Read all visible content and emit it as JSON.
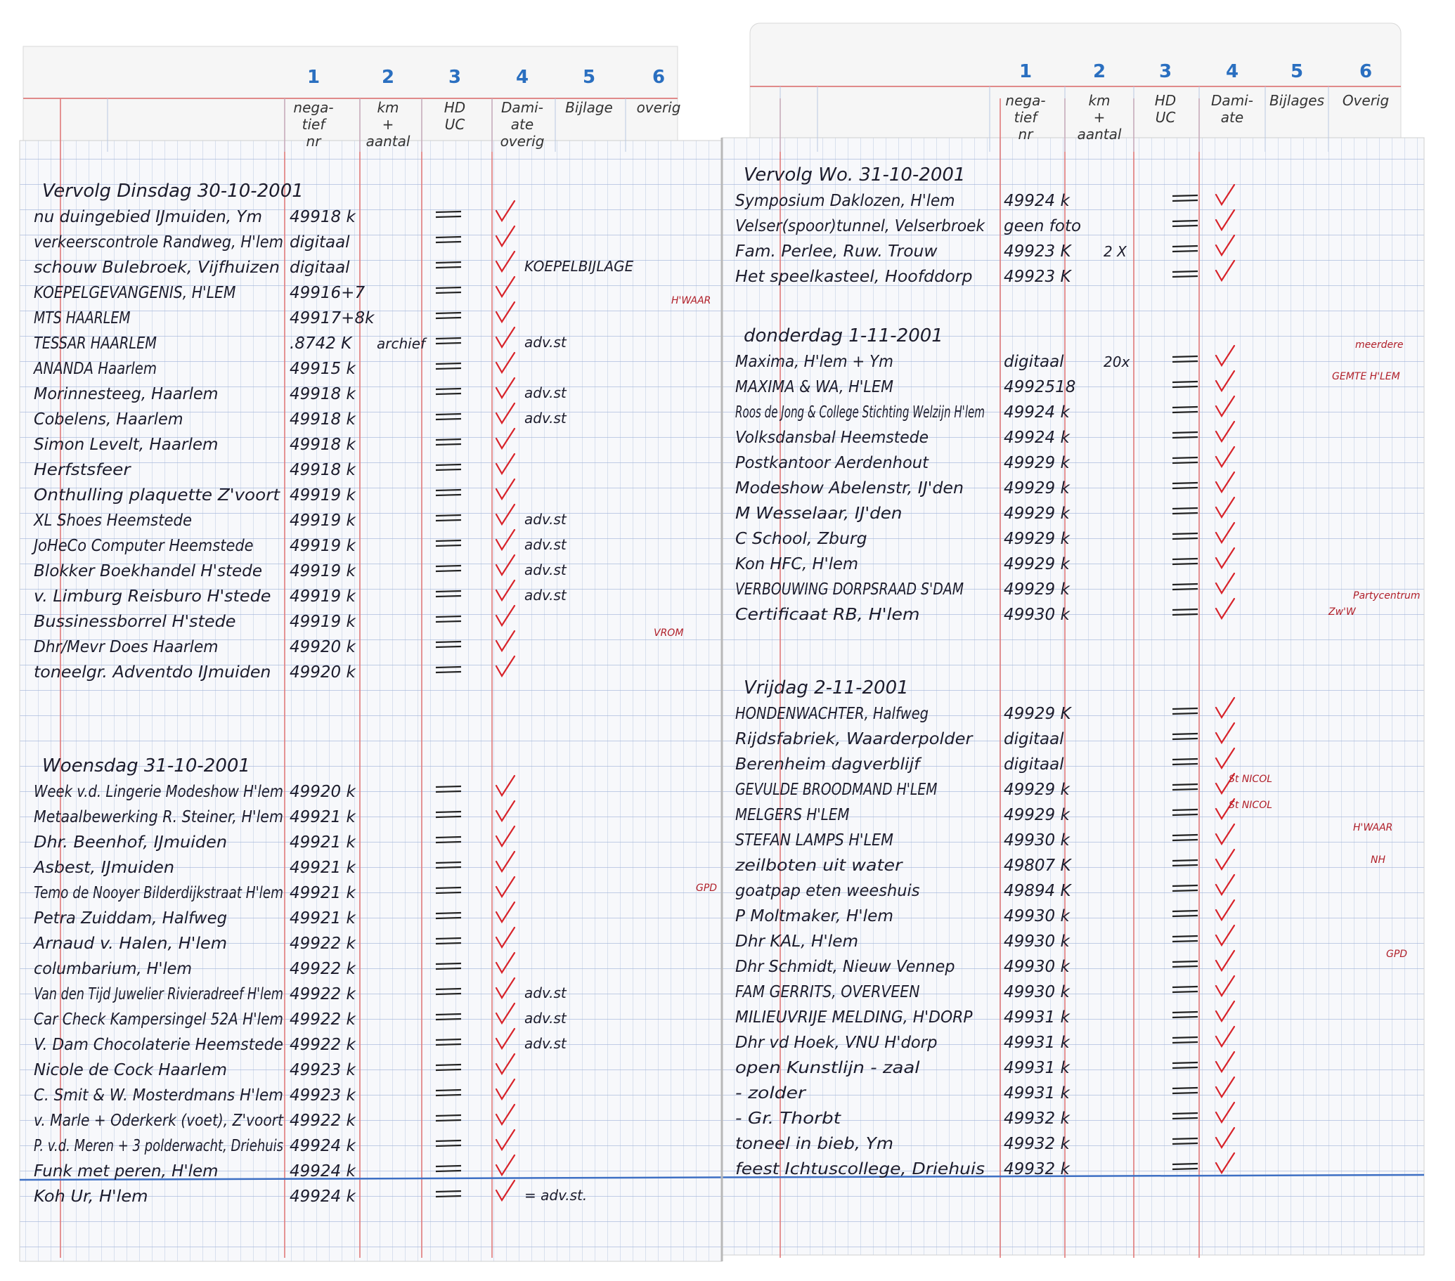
{
  "left_page": {
    "tab": {
      "columns": [
        {
          "number": "1",
          "label": [
            "nega-",
            "tief",
            "nr"
          ]
        },
        {
          "number": "2",
          "label": [
            "km",
            "+",
            "aantal"
          ]
        },
        {
          "number": "3",
          "label": [
            "HD",
            "UC"
          ]
        },
        {
          "number": "4",
          "label": [
            "Dami-",
            "ate",
            "overig"
          ]
        },
        {
          "number": "5",
          "label": [
            "Bijlage"
          ]
        },
        {
          "number": "6",
          "label": [
            "overig"
          ]
        }
      ]
    },
    "sections": [
      {
        "heading": "Vervolg Dinsdag 30-10-2001",
        "rows": [
          {
            "text": "nu duingebied IJmuiden, Ym",
            "number": "49918 k"
          },
          {
            "text": "verkeerscontrole Randweg, H'lem",
            "number": "digitaal"
          },
          {
            "text": "schouw Bulebroek, Vijfhuizen",
            "number": "digitaal",
            "note": "KOEPELBIJLAGE"
          },
          {
            "text": "KOEPELGEVANGENIS, H'LEM",
            "number": "49916+7"
          },
          {
            "text": "MTS HAARLEM",
            "number": "49917+8k"
          },
          {
            "text": "TESSAR HAARLEM",
            "number": ".8742 K",
            "extra": "archief",
            "note": "adv.st"
          },
          {
            "text": "ANANDA Haarlem",
            "number": "49915 k"
          },
          {
            "text": "Morinnesteeg, Haarlem",
            "number": "49918 k",
            "note": "adv.st"
          },
          {
            "text": "Cobelens, Haarlem",
            "number": "49918 k",
            "note": "adv.st"
          },
          {
            "text": "Simon Levelt, Haarlem",
            "number": "49918 k"
          },
          {
            "text": "Herfstsfeer",
            "number": "49918 k"
          },
          {
            "text": "Onthulling plaquette Z'voort",
            "number": "49919 k"
          },
          {
            "text": "XL Shoes Heemstede",
            "number": "49919 k",
            "note": "adv.st"
          },
          {
            "text": "JoHeCo Computer Heemstede",
            "number": "49919 k",
            "note": "adv.st"
          },
          {
            "text": "Blokker Boekhandel H'stede",
            "number": "49919 k",
            "note": "adv.st"
          },
          {
            "text": "v. Limburg Reisburo H'stede",
            "number": "49919 k",
            "note": "adv.st"
          },
          {
            "text": "Bussinessborrel H'stede",
            "number": "49919 k"
          },
          {
            "text": "Dhr/Mevr Does Haarlem",
            "number": "49920 k"
          },
          {
            "text": "toneelgr. Adventdo IJmuiden",
            "number": "49920 k"
          }
        ]
      },
      {
        "heading": "Woensdag 31-10-2001",
        "rows": [
          {
            "text": "Week v.d. Lingerie Modeshow H'lem",
            "number": "49920 k"
          },
          {
            "text": "Metaalbewerking R. Steiner, H'lem",
            "number": "49921 k"
          },
          {
            "text": "Dhr. Beenhof, IJmuiden",
            "number": "49921 k"
          },
          {
            "text": "Asbest, IJmuiden",
            "number": "49921 k"
          },
          {
            "text": "Temo de Nooyer Bilderdijkstraat H'lem",
            "number": "49921 k"
          },
          {
            "text": "Petra Zuiddam, Halfweg",
            "number": "49921 k"
          },
          {
            "text": "Arnaud v. Halen, H'lem",
            "number": "49922 k"
          },
          {
            "text": "columbarium, H'lem",
            "number": "49922 k"
          },
          {
            "text": "Van den Tijd Juwelier Rivieradreef H'lem",
            "number": "49922 k",
            "note": "adv.st"
          },
          {
            "text": "Car Check Kampersingel 52A H'lem",
            "number": "49922 k",
            "note": "adv.st"
          },
          {
            "text": "V. Dam Chocolaterie Heemstede",
            "number": "49922 k",
            "note": "adv.st"
          },
          {
            "text": "Nicole de Cock Haarlem",
            "number": "49923 k"
          },
          {
            "text": "C. Smit & W. Mosterdmans H'lem",
            "number": "49923 k"
          },
          {
            "text": "v. Marle + Oderkerk (voet), Z'voort",
            "number": "49922 k"
          },
          {
            "text": "P. v.d. Meren + 3 polderwacht, Driehuis",
            "number": "49924 k"
          },
          {
            "text": "Funk met peren, H'lem",
            "number": "49924 k"
          },
          {
            "text": "Koh Ur, H'lem",
            "number": "49924 k",
            "note": "= adv.st."
          }
        ]
      }
    ],
    "margin_notes": [
      "H'WAAR",
      "VROM",
      "GPD"
    ]
  },
  "right_page": {
    "tab": {
      "columns": [
        {
          "number": "1",
          "label": [
            "nega-",
            "tief",
            "nr"
          ]
        },
        {
          "number": "2",
          "label": [
            "km",
            "+",
            "aantal"
          ]
        },
        {
          "number": "3",
          "label": [
            "HD",
            "UC"
          ]
        },
        {
          "number": "4",
          "label": [
            "Dami-",
            "ate"
          ]
        },
        {
          "number": "5",
          "label": [
            "Bijlages"
          ]
        },
        {
          "number": "6",
          "label": [
            "Overig"
          ]
        }
      ]
    },
    "sections": [
      {
        "heading": "Vervolg Wo. 31-10-2001",
        "rows": [
          {
            "text": "Symposium Daklozen, H'lem",
            "number": "49924 k"
          },
          {
            "text": "Velser(spoor)tunnel, Velserbroek",
            "number": "geen foto"
          },
          {
            "text": "Fam. Perlee, Ruw. Trouw",
            "number": "49923 K",
            "extra": "2 X"
          },
          {
            "text": "Het speelkasteel, Hoofddorp",
            "number": "49923 K"
          }
        ]
      },
      {
        "heading": "donderdag 1-11-2001",
        "rows": [
          {
            "text": "Maxima, H'lem + Ym",
            "number": "digitaal",
            "extra": "20x"
          },
          {
            "text": "MAXIMA & WA, H'LEM",
            "number": "4992518"
          },
          {
            "text": "Roos de Jong & College Stichting Welzijn H'lem",
            "number": "49924 k"
          },
          {
            "text": "Volksdansbal Heemstede",
            "number": "49924 k"
          },
          {
            "text": "Postkantoor Aerdenhout",
            "number": "49929 k"
          },
          {
            "text": "Modeshow Abelenstr, IJ'den",
            "number": "49929 k"
          },
          {
            "text": "M Wesselaar, IJ'den",
            "number": "49929 k"
          },
          {
            "text": "C School, Zburg",
            "number": "49929 k"
          },
          {
            "text": "Kon HFC, H'lem",
            "number": "49929 k"
          },
          {
            "text": "VERBOUWING DORPSRAAD S'DAM",
            "number": "49929 k"
          },
          {
            "text": "Certificaat RB, H'lem",
            "number": "49930 k"
          }
        ]
      },
      {
        "heading": "Vrijdag 2-11-2001",
        "rows": [
          {
            "text": "HONDENWACHTER, Halfweg",
            "number": "49929 K"
          },
          {
            "text": "Rijdsfabriek, Waarderpolder",
            "number": "digitaal"
          },
          {
            "text": "Berenheim dagverblijf",
            "number": "digitaal"
          },
          {
            "text": "GEVULDE BROODMAND H'LEM",
            "number": "49929 k"
          },
          {
            "text": "MELGERS H'LEM",
            "number": "49929 k"
          },
          {
            "text": "STEFAN LAMPS H'LEM",
            "number": "49930 k"
          },
          {
            "text": "zeilboten uit water",
            "number": "49807 K"
          },
          {
            "text": "goatpap eten weeshuis",
            "number": "49894 K"
          },
          {
            "text": "P Moltmaker, H'lem",
            "number": "49930 k"
          },
          {
            "text": "Dhr KAL, H'lem",
            "number": "49930 k"
          },
          {
            "text": "Dhr Schmidt, Nieuw Vennep",
            "number": "49930 k"
          },
          {
            "text": "FAM GERRITS, OVERVEEN",
            "number": "49930 k"
          },
          {
            "text": "MILIEUVRIJE MELDING, H'DORP",
            "number": "49931 k"
          },
          {
            "text": "Dhr vd Hoek, VNU H'dorp",
            "number": "49931 k"
          },
          {
            "text": "open Kunstlijn - zaal",
            "number": "49931 k"
          },
          {
            "text": "- zolder",
            "number": "49931 k"
          },
          {
            "text": "- Gr. Thorbt",
            "number": "49932 k"
          },
          {
            "text": "toneel in bieb, Ym",
            "number": "49932 k"
          },
          {
            "text": "feest Ichtuscollege, Driehuis",
            "number": "49932 k"
          }
        ]
      }
    ],
    "margin_notes": [
      "meerdere",
      "GEMTE H'LEM",
      "Partycentrum",
      "Zw'W",
      "St NICOL",
      "St NICOL",
      "H'WAAR",
      "NH",
      "GPD"
    ]
  }
}
